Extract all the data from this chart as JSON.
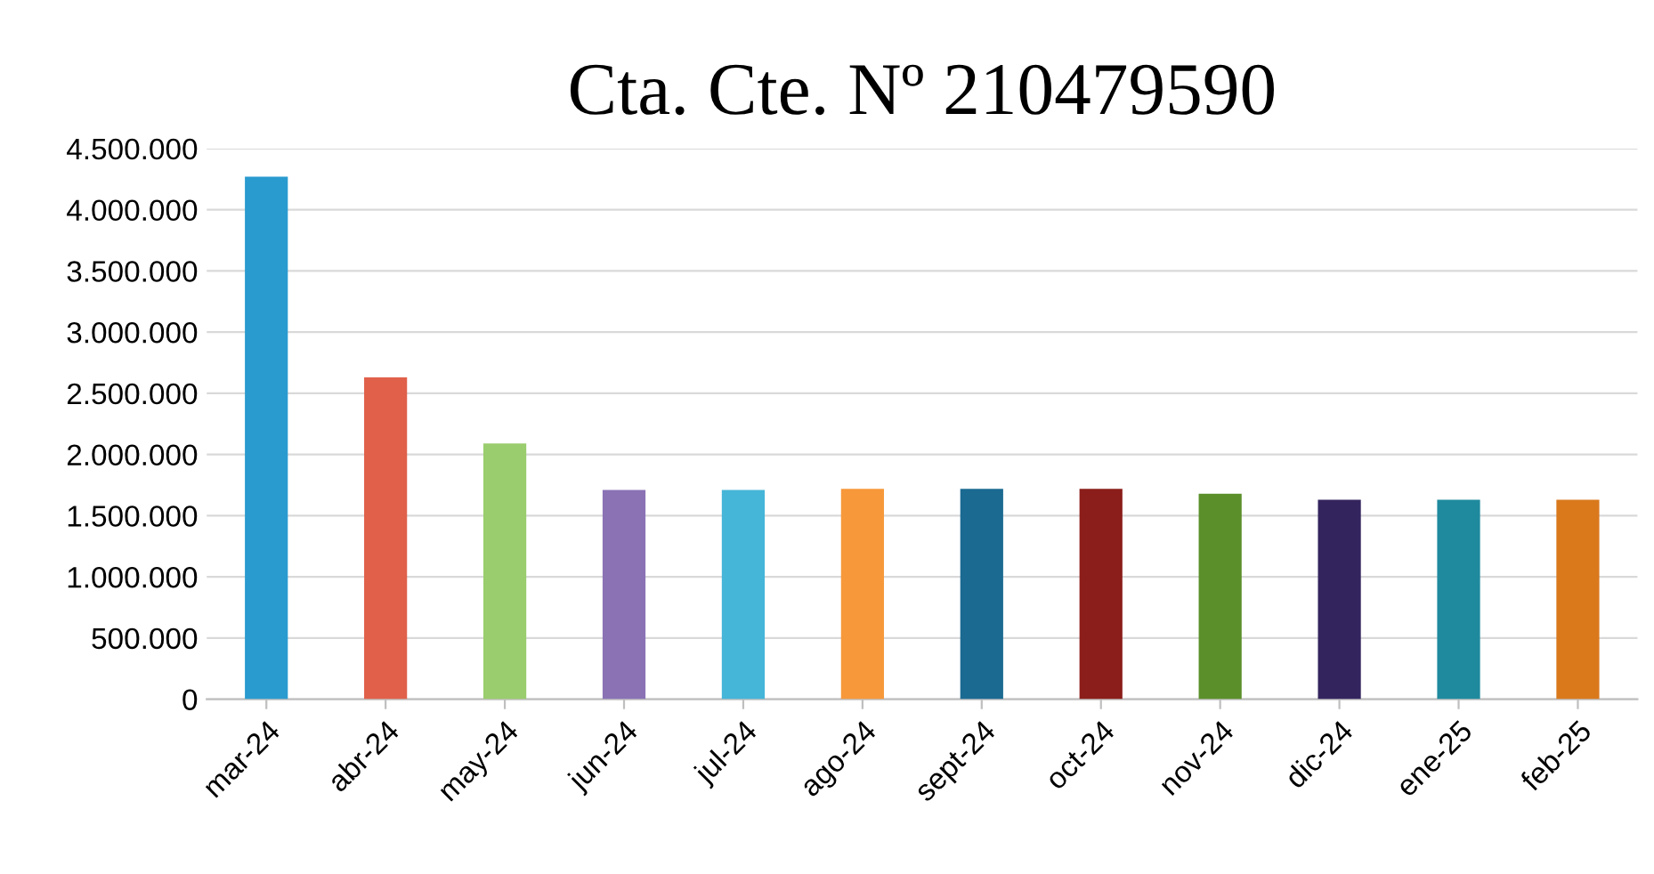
{
  "chart_data": {
    "type": "bar",
    "title": "Cta. Cte. Nº 210479590",
    "categories": [
      "mar-24",
      "abr-24",
      "may-24",
      "jun-24",
      "jul-24",
      "ago-24",
      "sept-24",
      "oct-24",
      "nov-24",
      "dic-24",
      "ene-25",
      "feb-25"
    ],
    "values": [
      4270000,
      2630000,
      2090000,
      1710000,
      1710000,
      1720000,
      1720000,
      1720000,
      1680000,
      1630000,
      1630000,
      1630000
    ],
    "colors": [
      "#2a9bcf",
      "#e0604a",
      "#9acd6e",
      "#8a72b5",
      "#45b5d8",
      "#f7983a",
      "#1b6a92",
      "#8b1e1a",
      "#5a8f2a",
      "#33245e",
      "#1f8a9e",
      "#d9791c"
    ],
    "ylim": [
      0,
      4500000
    ],
    "yticks": [
      {
        "value": 0,
        "label": "0"
      },
      {
        "value": 500000,
        "label": "500.000"
      },
      {
        "value": 1000000,
        "label": "1.000.000"
      },
      {
        "value": 1500000,
        "label": "1.500.000"
      },
      {
        "value": 2000000,
        "label": "2.000.000"
      },
      {
        "value": 2500000,
        "label": "2.500.000"
      },
      {
        "value": 3000000,
        "label": "3.000.000"
      },
      {
        "value": 3500000,
        "label": "3.500.000"
      },
      {
        "value": 4000000,
        "label": "4.000.000"
      },
      {
        "value": 4500000,
        "label": "4.500.000"
      }
    ],
    "grid": "y"
  }
}
